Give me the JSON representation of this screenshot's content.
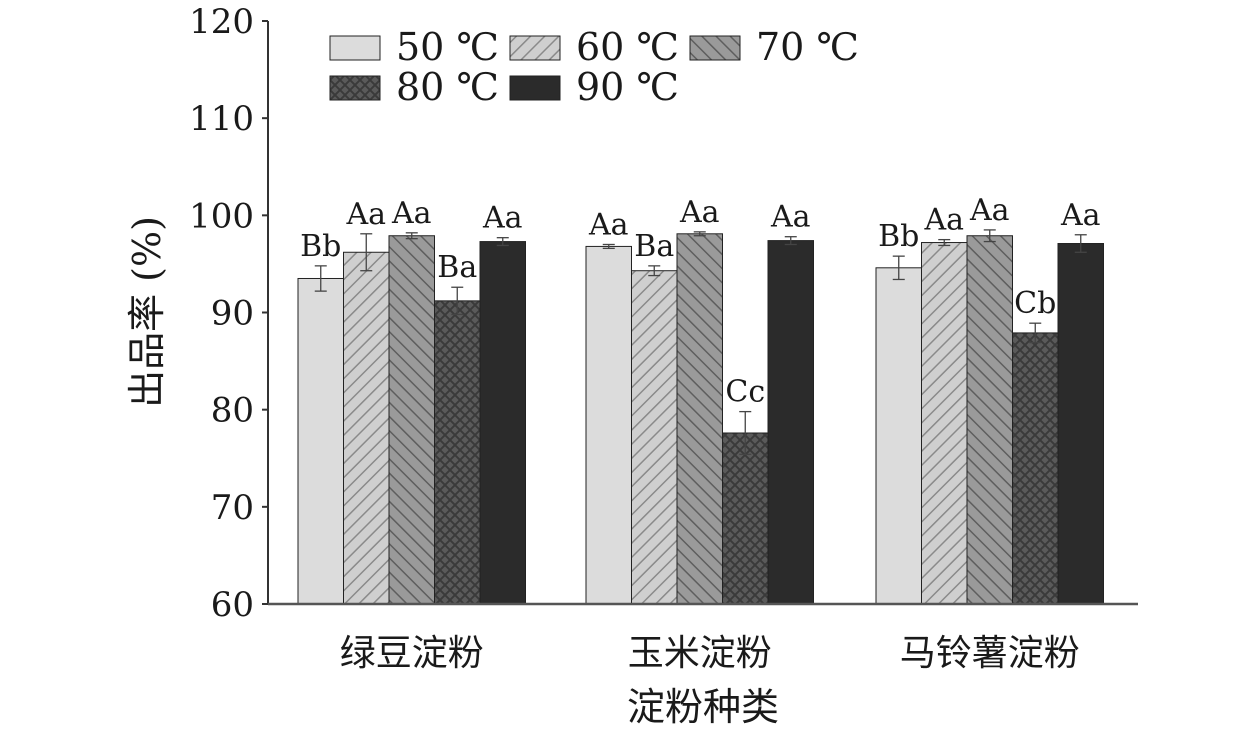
{
  "chart_data": {
    "type": "bar",
    "title": "",
    "xlabel": "淀粉种类",
    "ylabel": "出品率 (%)",
    "ylim": [
      60,
      120
    ],
    "yticks": [
      60,
      70,
      80,
      90,
      100,
      110,
      120
    ],
    "grid": false,
    "legend_position": "top",
    "categories": [
      "绿豆淀粉",
      "玉米淀粉",
      "马铃薯淀粉"
    ],
    "series": [
      {
        "name": "50 ℃",
        "values": [
          93.5,
          96.8,
          94.6
        ],
        "errors": [
          1.3,
          0.2,
          1.2
        ],
        "labels": [
          "Bb",
          "Aa",
          "Bb"
        ],
        "color": "#dcdcdc",
        "pattern": "solid-light"
      },
      {
        "name": "60 ℃",
        "values": [
          96.2,
          94.3,
          97.2
        ],
        "errors": [
          1.9,
          0.5,
          0.3
        ],
        "labels": [
          "Aa",
          "Ba",
          "Aa"
        ],
        "color": "#bdbdbd",
        "pattern": "diag-right-light"
      },
      {
        "name": "70 ℃",
        "values": [
          97.9,
          98.1,
          97.9
        ],
        "errors": [
          0.3,
          0.2,
          0.6
        ],
        "labels": [
          "Aa",
          "Aa",
          "Aa"
        ],
        "color": "#8f8f8f",
        "pattern": "diag-left-mid"
      },
      {
        "name": "80 ℃",
        "values": [
          91.2,
          77.6,
          87.9
        ],
        "errors": [
          1.4,
          2.2,
          1.0
        ],
        "labels": [
          "Ba",
          "Cc",
          "Cb"
        ],
        "color": "#5a5a5a",
        "pattern": "crosshatch-dark"
      },
      {
        "name": "90 ℃",
        "values": [
          97.3,
          97.4,
          97.1
        ],
        "errors": [
          0.4,
          0.4,
          0.9
        ],
        "labels": [
          "Aa",
          "Aa",
          "Aa"
        ],
        "color": "#2b2b2b",
        "pattern": "solid-dark"
      }
    ]
  }
}
